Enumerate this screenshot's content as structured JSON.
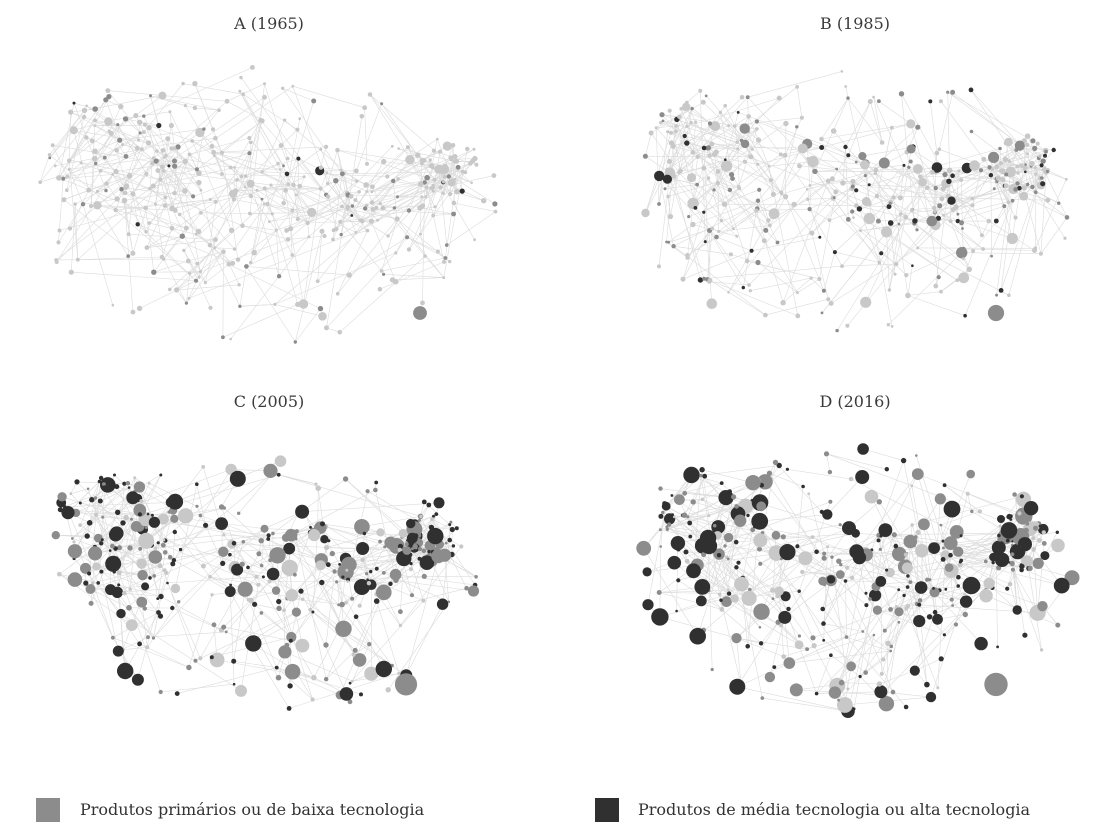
{
  "panels": [
    {
      "id": "a",
      "title": "A (1965)",
      "dark_level": 0.03,
      "mid_level": 0.12,
      "size_level": 0.15
    },
    {
      "id": "b",
      "title": "B (1985)",
      "dark_level": 0.12,
      "mid_level": 0.28,
      "size_level": 0.35
    },
    {
      "id": "c",
      "title": "C (2005)",
      "dark_level": 0.42,
      "mid_level": 0.4,
      "size_level": 0.85
    },
    {
      "id": "d",
      "title": "D (2016)",
      "dark_level": 0.4,
      "mid_level": 0.38,
      "size_level": 0.95
    }
  ],
  "legend": [
    {
      "label": "Produtos primários ou de baixa tecnologia",
      "color": "#8c8c8c"
    },
    {
      "label": "Produtos de média tecnologia ou alta tecnologia",
      "color": "#303030"
    }
  ],
  "colors": {
    "edge": "#dcdcdc",
    "light_node": "#c8c8c8",
    "mid_node": "#8c8c8c",
    "dark_node": "#303030"
  }
}
